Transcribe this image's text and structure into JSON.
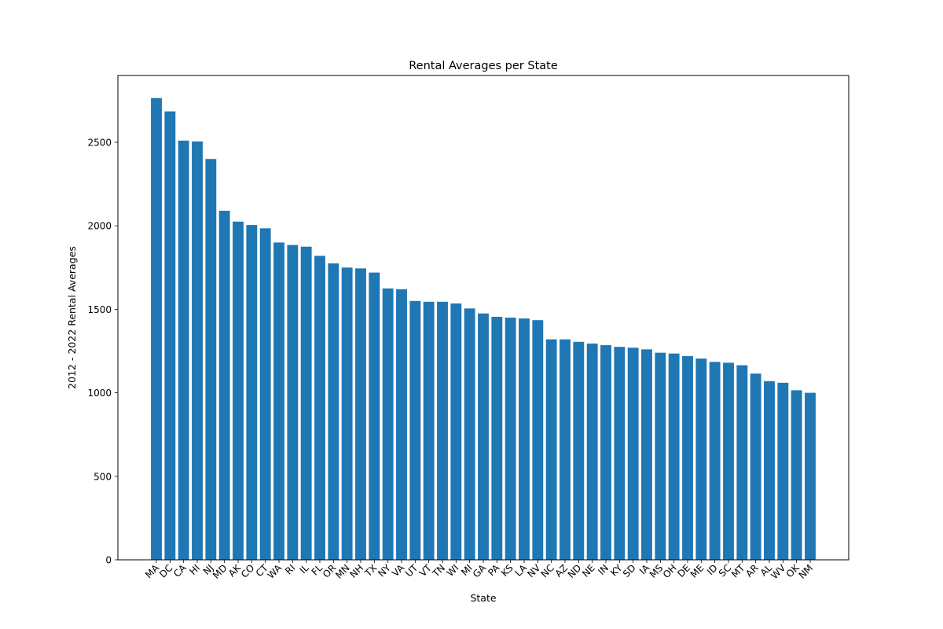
{
  "chart_data": {
    "type": "bar",
    "title": "Rental Averages per State",
    "xlabel": "State",
    "ylabel": "2012 - 2022 Rental Averages",
    "categories": [
      "MA",
      "DC",
      "CA",
      "HI",
      "NJ",
      "MD",
      "AK",
      "CO",
      "CT",
      "WA",
      "RI",
      "IL",
      "FL",
      "OR",
      "MN",
      "NH",
      "TX",
      "NY",
      "VA",
      "UT",
      "VT",
      "TN",
      "WI",
      "MI",
      "GA",
      "PA",
      "KS",
      "LA",
      "NV",
      "NC",
      "AZ",
      "ND",
      "NE",
      "IN",
      "KY",
      "SD",
      "IA",
      "MS",
      "OH",
      "DE",
      "ME",
      "ID",
      "SC",
      "MT",
      "AR",
      "AL",
      "WV",
      "OK",
      "NM"
    ],
    "values": [
      2765,
      2685,
      2510,
      2505,
      2400,
      2090,
      2025,
      2005,
      1985,
      1900,
      1885,
      1875,
      1820,
      1775,
      1750,
      1745,
      1720,
      1625,
      1620,
      1550,
      1545,
      1545,
      1535,
      1505,
      1475,
      1455,
      1450,
      1445,
      1435,
      1320,
      1320,
      1305,
      1295,
      1285,
      1275,
      1270,
      1260,
      1240,
      1235,
      1220,
      1205,
      1185,
      1180,
      1165,
      1115,
      1070,
      1060,
      1015,
      1000
    ],
    "yticks": [
      0,
      500,
      1000,
      1500,
      2000,
      2500
    ],
    "ylim": [
      0,
      2900
    ],
    "bar_color": "#1f77b4",
    "grid": false,
    "legend": "none"
  }
}
